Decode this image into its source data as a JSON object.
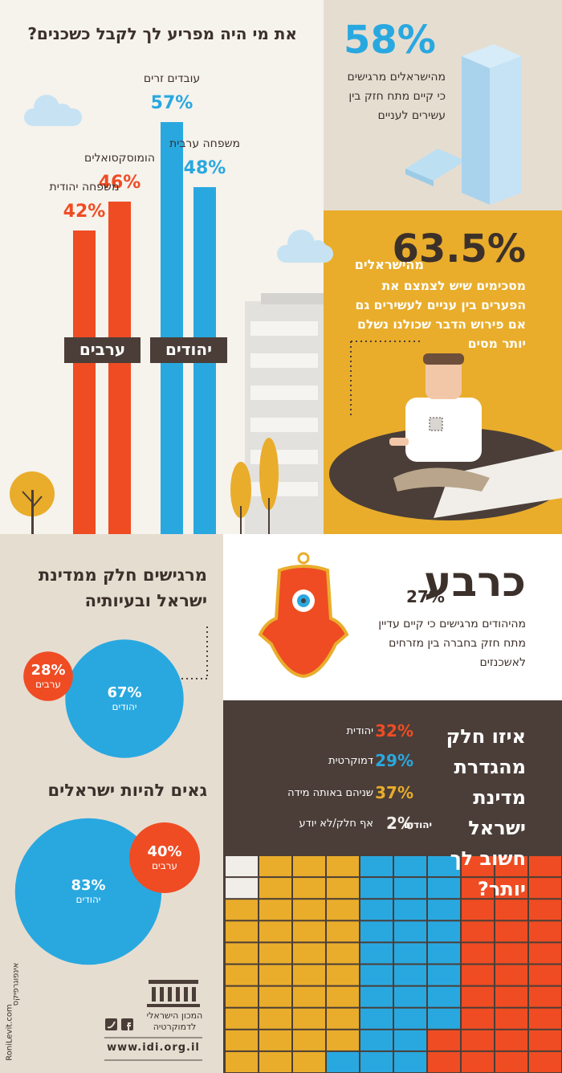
{
  "neighbors": {
    "title": "את מי היה מפריע לך לקבל כשכנים?",
    "groups": [
      {
        "name": "יהודים",
        "color": "#29a8e0",
        "bars": [
          {
            "label": "עובדים זרים",
            "value": 57,
            "value_label": "57%"
          },
          {
            "label": "משפחה ערבית",
            "value": 48,
            "value_label": "48%"
          }
        ]
      },
      {
        "name": "ערבים",
        "color": "#ef4c23",
        "bars": [
          {
            "label": "הומוסקסואלים",
            "value": 46,
            "value_label": "46%"
          },
          {
            "label": "משפחה יהודית",
            "value": 42,
            "value_label": "42%"
          }
        ]
      }
    ]
  },
  "rich_poor": {
    "figure": "58%",
    "text": "מהישראלים מרגישים כי קיים מתח חזק בין עשירים לעניים"
  },
  "gap": {
    "figure": "63.5%",
    "lead": "מהישראלים",
    "text": "מסכימים שיש לצמצם את הפערים בין עניים לעשירים גם אם פירוש הדבר שכולנו נשלם יותר מסים"
  },
  "mizrahi": {
    "headline": "כרבע",
    "figure": "27%",
    "text": "מהיהודים מרגישים כי קיים עדיין מתח חזק בחברה בין מזרחים לאשכנזים"
  },
  "belonging": {
    "title": "מרגישים חלק ממדינת ישראל ובעיותיה",
    "bubbles": [
      {
        "label": "יהודים",
        "value": 67,
        "value_label": "67%",
        "color": "#29a8e0"
      },
      {
        "label": "ערבים",
        "value": 28,
        "value_label": "28%",
        "color": "#ef4c23"
      }
    ]
  },
  "pride": {
    "title": "גאים להיות ישראלים",
    "bubbles": [
      {
        "label": "יהודים",
        "value": 83,
        "value_label": "83%",
        "color": "#29a8e0"
      },
      {
        "label": "ערבים",
        "value": 40,
        "value_label": "40%",
        "color": "#ef4c23"
      }
    ]
  },
  "identity": {
    "question": "איזו חלק מהגדרת מדינת ישראל חשוב לך יותר?",
    "group": "יהודים",
    "items": [
      {
        "label": "יהודית",
        "value": 32,
        "value_label": "32%",
        "color": "#ef4c23"
      },
      {
        "label": "דמוקרטית",
        "value": 29,
        "value_label": "29%",
        "color": "#29a8e0"
      },
      {
        "label": "שניהם באותה מידה",
        "value": 37,
        "value_label": "37%",
        "color": "#e9ad2b"
      },
      {
        "label": "אף חלק/לא יודע",
        "value": 2,
        "value_label": "2%",
        "color": "#f1eeea"
      }
    ]
  },
  "footer": {
    "org": "המכון הישראלי לדמוקרטיה",
    "url": "www.idi.org.il",
    "credit": "RoniLevit.com",
    "credit_label": "אינפוגרפיקס"
  }
}
